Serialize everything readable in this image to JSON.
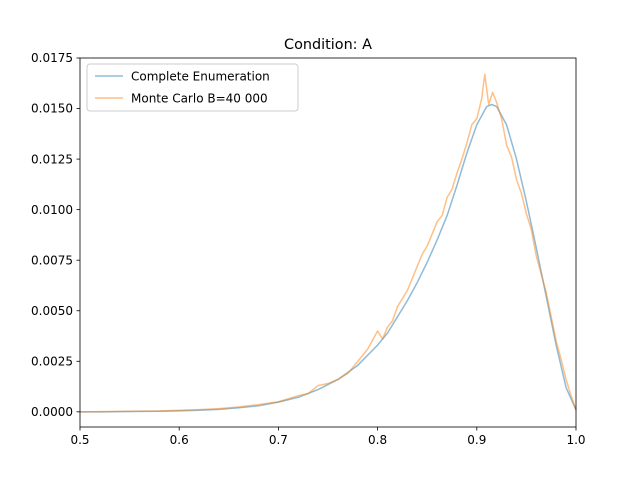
{
  "chart_data": {
    "type": "line",
    "title": "Condition: A",
    "xlabel": "",
    "ylabel": "",
    "xlim": [
      0.5,
      1.0
    ],
    "ylim": [
      -0.00075,
      0.0175
    ],
    "x_ticks": [
      "0.5",
      "0.6",
      "0.7",
      "0.8",
      "0.9",
      "1.0"
    ],
    "x_tick_values": [
      0.5,
      0.6,
      0.7,
      0.8,
      0.9,
      1.0
    ],
    "y_ticks": [
      "0.0000",
      "0.0025",
      "0.0050",
      "0.0075",
      "0.0100",
      "0.0125",
      "0.0150",
      "0.0175"
    ],
    "y_tick_values": [
      0.0,
      0.0025,
      0.005,
      0.0075,
      0.01,
      0.0125,
      0.015,
      0.0175
    ],
    "grid": false,
    "legend_position": "top-left",
    "series": [
      {
        "name": "Complete Enumeration",
        "color": "#1f77b4",
        "opacity": 0.5,
        "x": [
          0.5,
          0.52,
          0.54,
          0.56,
          0.58,
          0.6,
          0.62,
          0.64,
          0.66,
          0.68,
          0.7,
          0.72,
          0.74,
          0.76,
          0.78,
          0.8,
          0.81,
          0.82,
          0.83,
          0.84,
          0.85,
          0.86,
          0.87,
          0.88,
          0.89,
          0.9,
          0.91,
          0.915,
          0.92,
          0.93,
          0.94,
          0.95,
          0.96,
          0.97,
          0.98,
          0.99,
          1.0
        ],
        "y": [
          0.0,
          0.0,
          1e-05,
          2e-05,
          3e-05,
          5e-05,
          8e-05,
          0.00012,
          0.0002,
          0.0003,
          0.00048,
          0.00072,
          0.0011,
          0.0016,
          0.0023,
          0.0033,
          0.0039,
          0.0047,
          0.0055,
          0.0064,
          0.0074,
          0.0085,
          0.0097,
          0.0112,
          0.0128,
          0.0142,
          0.0151,
          0.0152,
          0.0151,
          0.0142,
          0.0125,
          0.0104,
          0.0081,
          0.0057,
          0.0033,
          0.0012,
          0.0001
        ]
      },
      {
        "name": "Monte Carlo B=40 000",
        "color": "#ff7f0e",
        "opacity": 0.5,
        "x": [
          0.5,
          0.52,
          0.54,
          0.56,
          0.58,
          0.6,
          0.62,
          0.64,
          0.66,
          0.68,
          0.7,
          0.72,
          0.73,
          0.74,
          0.75,
          0.76,
          0.77,
          0.78,
          0.79,
          0.8,
          0.805,
          0.81,
          0.815,
          0.82,
          0.825,
          0.83,
          0.835,
          0.84,
          0.845,
          0.85,
          0.855,
          0.86,
          0.865,
          0.87,
          0.875,
          0.88,
          0.885,
          0.89,
          0.895,
          0.9,
          0.905,
          0.908,
          0.912,
          0.916,
          0.92,
          0.925,
          0.93,
          0.935,
          0.94,
          0.945,
          0.95,
          0.955,
          0.96,
          0.965,
          0.97,
          0.975,
          0.98,
          0.985,
          0.99,
          0.995,
          1.0
        ],
        "y": [
          0.0,
          1e-05,
          2e-05,
          3e-05,
          4e-05,
          8e-05,
          0.00011,
          0.00016,
          0.00024,
          0.00036,
          0.0005,
          0.0008,
          0.0009,
          0.0013,
          0.0014,
          0.0016,
          0.0019,
          0.0025,
          0.0031,
          0.004,
          0.0036,
          0.0042,
          0.0045,
          0.0052,
          0.0056,
          0.006,
          0.0066,
          0.0072,
          0.0078,
          0.0082,
          0.0088,
          0.0094,
          0.0097,
          0.0106,
          0.011,
          0.0118,
          0.0125,
          0.0133,
          0.0142,
          0.0145,
          0.0155,
          0.0167,
          0.0152,
          0.0158,
          0.0153,
          0.0145,
          0.0132,
          0.0126,
          0.0115,
          0.0108,
          0.0098,
          0.009,
          0.0077,
          0.0068,
          0.0059,
          0.0047,
          0.0035,
          0.0026,
          0.0016,
          0.0008,
          0.0001
        ]
      }
    ]
  }
}
